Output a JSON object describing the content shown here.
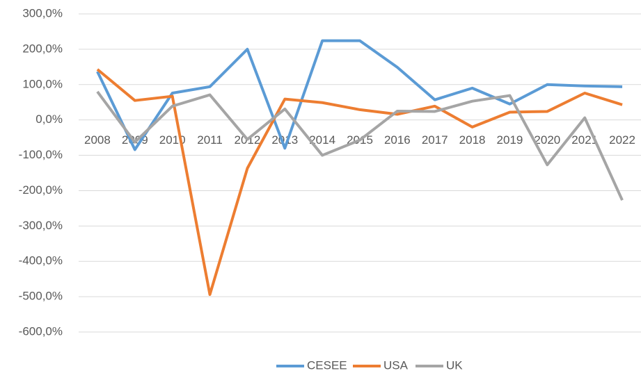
{
  "chart_data": {
    "type": "line",
    "categories": [
      "2008",
      "2009",
      "2010",
      "2011",
      "2012",
      "2013",
      "2014",
      "2015",
      "2016",
      "2017",
      "2018",
      "2019",
      "2020",
      "2021",
      "2022"
    ],
    "series": [
      {
        "name": "CESEE",
        "color": "#5b9bd5",
        "values": [
          137,
          -84,
          76,
          94,
          200,
          -80,
          224,
          224,
          149,
          57,
          90,
          45,
          100,
          96,
          94
        ]
      },
      {
        "name": "USA",
        "color": "#ed7d31",
        "values": [
          143,
          55,
          67,
          -494,
          -137,
          59,
          49,
          29,
          16,
          39,
          -20,
          22,
          24,
          76,
          43
        ]
      },
      {
        "name": "UK",
        "color": "#a5a5a5",
        "values": [
          80,
          -63,
          39,
          71,
          -55,
          31,
          -100,
          -57,
          25,
          24,
          53,
          69,
          -127,
          6,
          -227
        ]
      }
    ],
    "ylim": [
      -600,
      300
    ],
    "yticks": [
      {
        "value": -600,
        "label": "-600,0%"
      },
      {
        "value": -500,
        "label": "-500,0%"
      },
      {
        "value": -400,
        "label": "-400,0%"
      },
      {
        "value": -300,
        "label": "-300,0%"
      },
      {
        "value": -200,
        "label": "-200,0%"
      },
      {
        "value": -100,
        "label": "-100,0%"
      },
      {
        "value": 0,
        "label": "0,0%"
      },
      {
        "value": 100,
        "label": "100,0%"
      },
      {
        "value": 200,
        "label": "200,0%"
      },
      {
        "value": 300,
        "label": "300,0%"
      }
    ],
    "grid": true,
    "legend": "bottom"
  }
}
